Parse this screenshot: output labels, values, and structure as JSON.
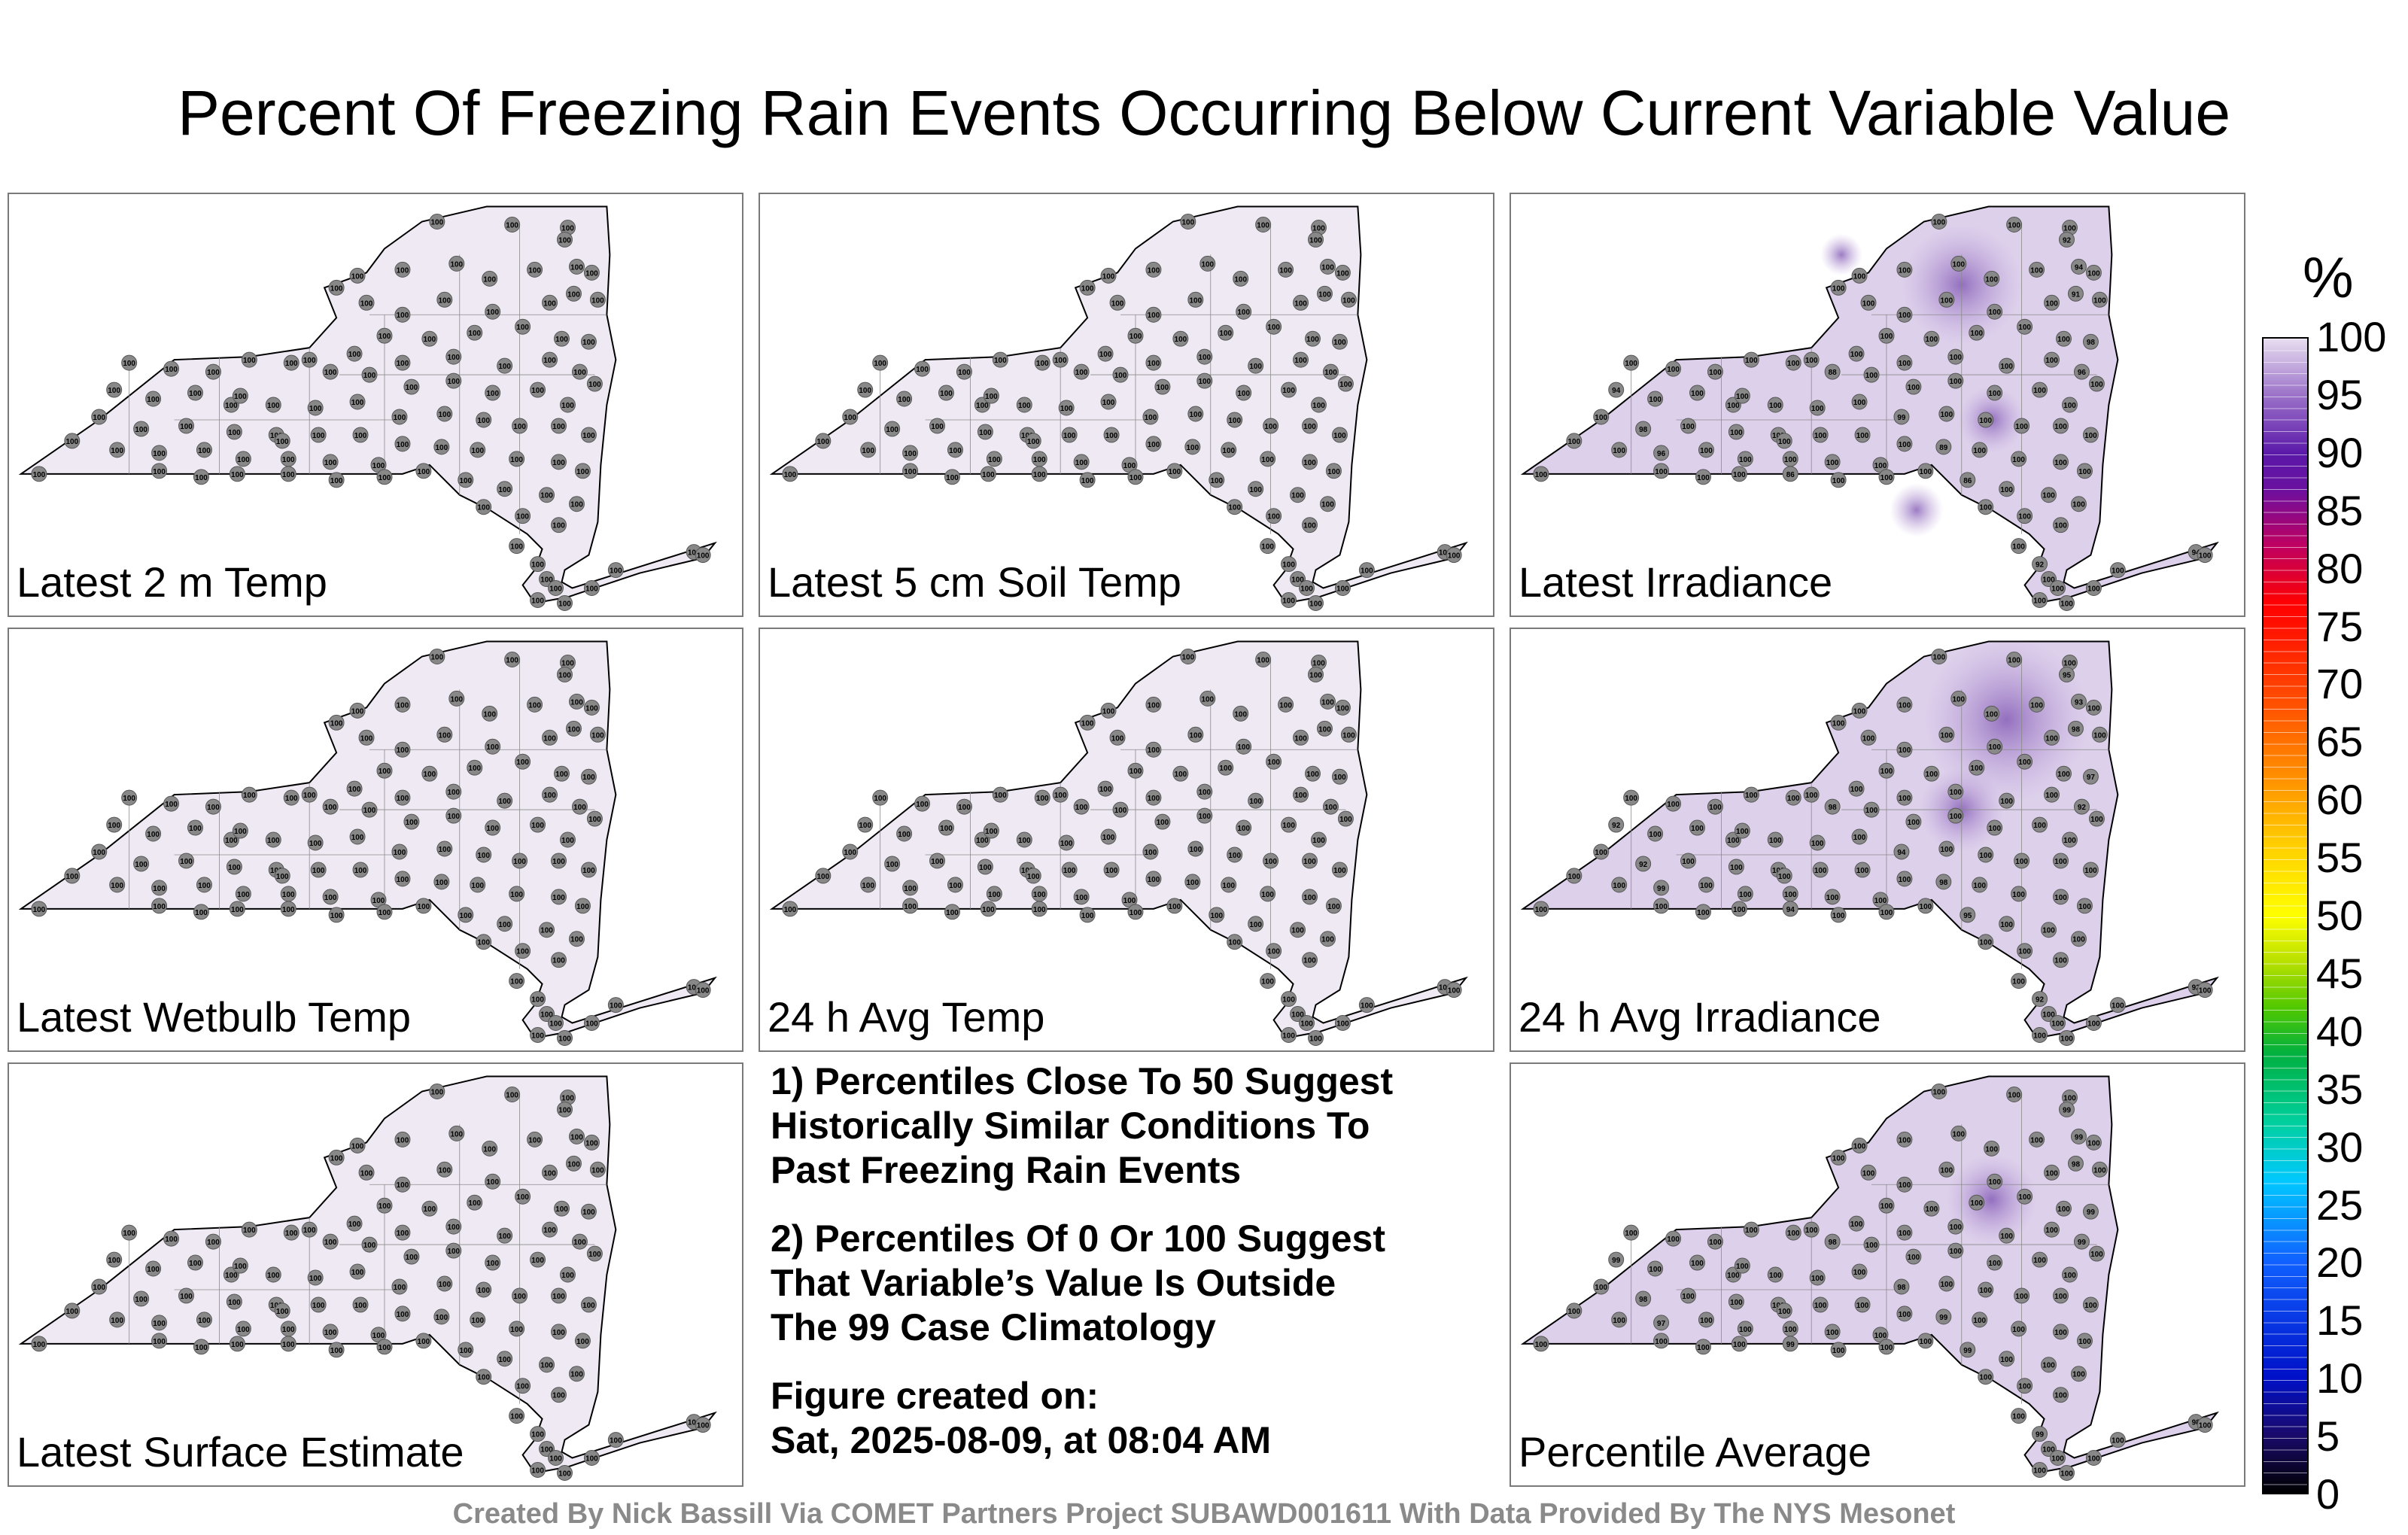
{
  "title": "Percent Of Freezing Rain Events Occurring Below Current Variable Value",
  "panels": [
    {
      "label": "Latest 2 m Temp",
      "shaded": false
    },
    {
      "label": "Latest 5 cm Soil Temp",
      "shaded": false
    },
    {
      "label": "Latest Irradiance",
      "shaded": true
    },
    {
      "label": "Latest Wetbulb Temp",
      "shaded": false
    },
    {
      "label": "24 h Avg Temp",
      "shaded": false
    },
    {
      "label": "24 h Avg Irradiance",
      "shaded": true
    },
    {
      "label": "Latest Surface Estimate",
      "shaded": false
    },
    {
      "label": "Percentile Average",
      "shaded": true
    }
  ],
  "notes": {
    "note1": [
      "1) Percentiles Close To 50 Suggest",
      "Historically Similar Conditions To",
      "Past Freezing Rain Events"
    ],
    "note2": [
      "2) Percentiles Of 0 Or 100 Suggest",
      "That Variable’s Value Is Outside",
      "The 99 Case Climatology"
    ],
    "created": [
      "Figure created on:",
      "Sat, 2025-08-09, at 08:04 AM"
    ]
  },
  "colorbar": {
    "unit": "%",
    "labels": [
      "100",
      "95",
      "90",
      "85",
      "80",
      "75",
      "70",
      "65",
      "60",
      "55",
      "50",
      "45",
      "40",
      "35",
      "30",
      "25",
      "20",
      "15",
      "10",
      "5",
      "0"
    ],
    "colors": {
      "low": "#000000",
      "mid": "#ffff00",
      "high": "#e8def0",
      "marker": "#888888"
    }
  },
  "credit": "Created By Nick Bassill Via COMET Partners Project SUBAWD001611 With Data Provided By The NYS Mesonet",
  "station_value": "100",
  "notable_values": {
    "irradiance": [
      "92",
      "94",
      "91",
      "98",
      "96",
      "88",
      "94",
      "99",
      "98",
      "89",
      "96",
      "86",
      "86"
    ],
    "avg_irradiance": [
      "95",
      "93",
      "98",
      "97",
      "92",
      "98",
      "92",
      "94",
      "92",
      "98",
      "99",
      "95",
      "94",
      "92",
      "92"
    ],
    "average": [
      "99",
      "99",
      "98",
      "99",
      "99",
      "98",
      "99",
      "98",
      "98",
      "99",
      "97",
      "99",
      "99",
      "99",
      "98",
      "98"
    ]
  }
}
